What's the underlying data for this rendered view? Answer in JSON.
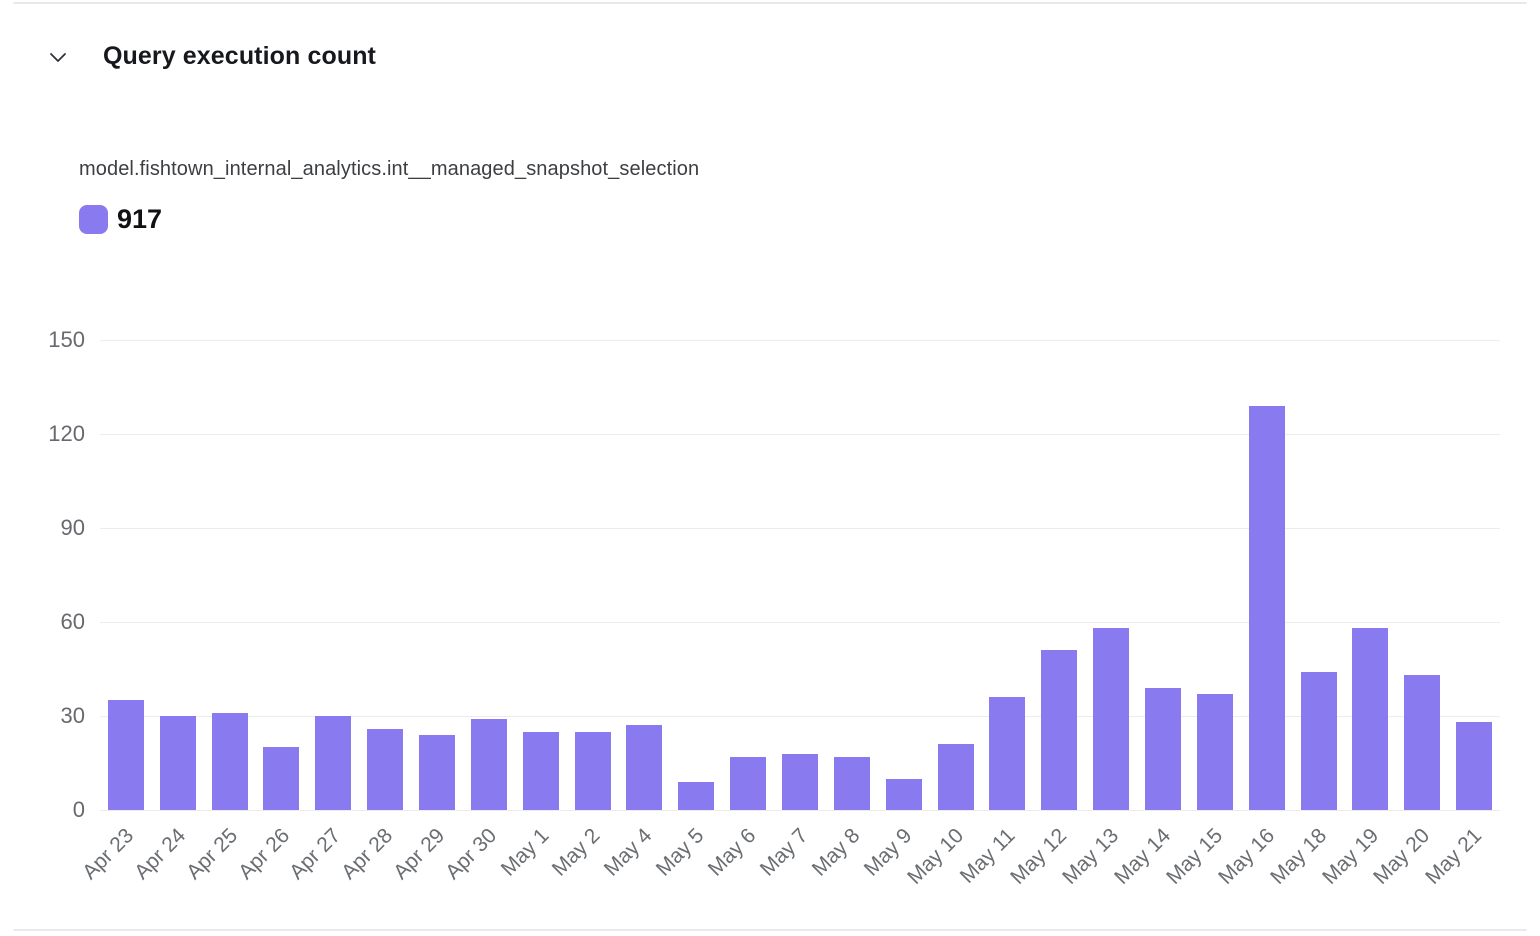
{
  "header": {
    "title": "Query execution count",
    "icon": "chevron-down",
    "expanded": true
  },
  "legend": {
    "series_name": "model.fishtown_internal_analytics.int__managed_snapshot_selection",
    "total": "917",
    "swatch_color": "#8a7af0"
  },
  "chart_data": {
    "type": "bar",
    "title": "Query execution count",
    "series_label": "model.fishtown_internal_analytics.int__managed_snapshot_selection",
    "series_total": 917,
    "categories": [
      "Apr 23",
      "Apr 24",
      "Apr 25",
      "Apr 26",
      "Apr 27",
      "Apr 28",
      "Apr 29",
      "Apr 30",
      "May 1",
      "May 2",
      "May 4",
      "May 5",
      "May 6",
      "May 7",
      "May 8",
      "May 9",
      "May 10",
      "May 11",
      "May 12",
      "May 13",
      "May 14",
      "May 15",
      "May 16",
      "May 18",
      "May 19",
      "May 20",
      "May 21"
    ],
    "values": [
      35,
      30,
      31,
      20,
      30,
      26,
      24,
      29,
      25,
      25,
      27,
      9,
      17,
      18,
      17,
      10,
      21,
      36,
      51,
      58,
      39,
      37,
      129,
      44,
      58,
      43,
      28
    ],
    "xlabel": "",
    "ylabel": "",
    "ylim": [
      0,
      150
    ],
    "yticks": [
      0,
      30,
      60,
      90,
      120,
      150
    ],
    "grid": true,
    "bar_color": "#8a7af0",
    "tick_color": "#67696e",
    "grid_color": "#ececec",
    "legend_position": "top-left"
  }
}
